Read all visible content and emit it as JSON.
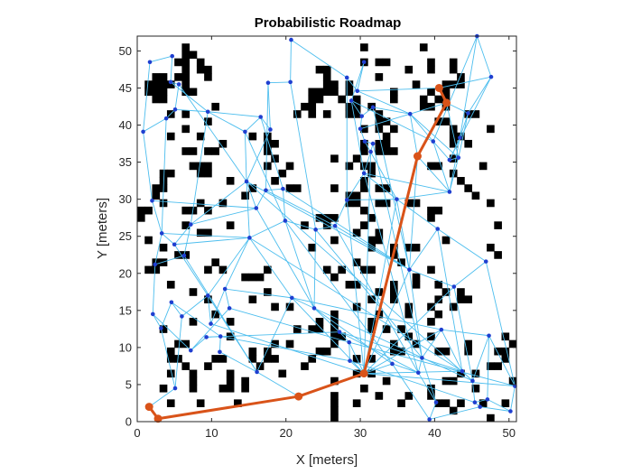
{
  "chart_data": {
    "type": "scatter",
    "title": "Probabilistic Roadmap",
    "xlabel": "X [meters]",
    "ylabel": "Y [meters]",
    "xlim": [
      0,
      51
    ],
    "ylim": [
      0,
      52
    ],
    "xticks": [
      0,
      10,
      20,
      30,
      40,
      50
    ],
    "yticks": [
      0,
      5,
      10,
      15,
      20,
      25,
      30,
      35,
      40,
      45,
      50
    ],
    "grid": false,
    "colors": {
      "obstacle": "#000000",
      "edge": "#4dbeee",
      "node": "#1f3fd0",
      "path": "#d95319",
      "axes": "#262626"
    },
    "map_origin_cell": [
      0,
      0
    ],
    "map_cell_size": 1,
    "occupancy_rows": [
      "...................................................",
      "......#.......................#.......#............",
      "......##...........................................",
      ".....##.#.....................#.##.....#..#........",
      "......#.##..............##..........#..#..#........",
      "..##.##..#...............#......#..........#.......",
      ".####.#..................##.#........#...###.......",
      ".###..##...............####.#.....#....#.#.........",
      "..##...................##..#.#....#...#.##.........",
      "..........#...........##....##.#......##.#.........",
      "....#.#..............#.#.#..##..#...........##.....",
      ".........#......................##......##..........",
      "......#.......................#.#.#.......#....#...",
      "....#...#......#.#...............#........##.......",
      "...........#.....##...........#.##........#.#......",
      "......##.##......#............#.###................",
      "..................#.......#..#............#........",
      ".......###.......#..#.......#.##.......##.....#....",
      "...##...##.........#...........#..........#........",
      "...#........#.....#...........#............#.......",
      "..##...........#....##....#...#.##..........#......",
      "..#...........#.............##...............#.....",
      "...#....#..#................##..##..##.........#...",
      "##....##.#....................#........##..........",
      "#.......................###....#.......#...........",
      "......#.....#.........#..#....#.................#..",
      "........##...................#..#..................",
      ".#........................#....##........#.........",
      "...#...................#.......#..#.##.........#...",
      ".....##...........................#.............#..",
      "..##......#..................#.....#...............",
      ".##......#.#.....#.......#.#..##.......#...........",
      "..............###.........#..........#.............",
      "....#.......................##....#..#..#..........",
      ".......#.........#..............#.#......#.#.......",
      ".........#.....#...............#..#.....#..##......",
      "..................#.#........#......#..#..#........",
      "..........#...............#.....#...#...#..........",
      ".......#....#...........#.#....#.......#...........",
      "...#.................#.##.#....#.#.#...............",
      "............#.............##........#..#.........#",
      ".....##...........#.#.....#.......#..#......#.....#",
      "....#..........#.#......##........##....##..#...##.",
      "....##....##...#.##....#.....#.#.................#.",
      "......#..#......#.....#........................##..",
      "....#..#....#......#.........#.#...........#.#.....",
      ".......#....#.#...........#......#.......##.......#",
      "...#...#...##.#...............#........#.....#.....",
      "..........................#.....#...#..#...........",
      "....#...#....#............#..#.....#....##.#..#..#.",
      "..........................#...............#........",
      "..........................#....................#..."
    ],
    "nodes": [
      [
        1.6,
        2.0
      ],
      [
        2.8,
        0.4
      ],
      [
        30.5,
        6.5
      ],
      [
        21.7,
        3.4
      ],
      [
        37.7,
        35.8
      ],
      [
        40.6,
        45.0
      ],
      [
        41.6,
        43.0
      ],
      [
        1.7,
        48.5
      ],
      [
        4.7,
        49.3
      ],
      [
        4.5,
        45.8
      ],
      [
        5.6,
        45.5
      ],
      [
        5.1,
        42.1
      ],
      [
        3.9,
        40.9
      ],
      [
        0.8,
        39.1
      ],
      [
        9.5,
        41.8
      ],
      [
        14.5,
        39.1
      ],
      [
        16.6,
        41.1
      ],
      [
        17.9,
        39.4
      ],
      [
        17.6,
        45.7
      ],
      [
        20.6,
        45.8
      ],
      [
        20.7,
        51.5
      ],
      [
        28.2,
        46.4
      ],
      [
        29.6,
        44.6
      ],
      [
        30.5,
        48.5
      ],
      [
        28.8,
        43.3
      ],
      [
        30.2,
        41.2
      ],
      [
        30.0,
        39.5
      ],
      [
        30.6,
        37.8
      ],
      [
        31.7,
        37.5
      ],
      [
        31.4,
        36.4
      ],
      [
        30.5,
        33.5
      ],
      [
        31.7,
        42.4
      ],
      [
        36.7,
        41.5
      ],
      [
        39.8,
        37.8
      ],
      [
        42.0,
        35.3
      ],
      [
        43.4,
        38.3
      ],
      [
        44.5,
        41.6
      ],
      [
        45.7,
        52.0
      ],
      [
        47.6,
        46.5
      ],
      [
        43.2,
        35.6
      ],
      [
        42.0,
        31.0
      ],
      [
        2.0,
        29.8
      ],
      [
        3.3,
        25.4
      ],
      [
        5.0,
        23.9
      ],
      [
        7.2,
        26.6
      ],
      [
        6.3,
        22.4
      ],
      [
        2.4,
        21.2
      ],
      [
        14.7,
        32.4
      ],
      [
        16.0,
        28.8
      ],
      [
        17.3,
        31.2
      ],
      [
        19.6,
        31.4
      ],
      [
        19.9,
        27.1
      ],
      [
        15.1,
        24.8
      ],
      [
        24.0,
        25.9
      ],
      [
        26.6,
        26.4
      ],
      [
        28.2,
        29.9
      ],
      [
        34.9,
        30.0
      ],
      [
        36.6,
        20.5
      ],
      [
        40.4,
        26.0
      ],
      [
        46.9,
        21.6
      ],
      [
        42.6,
        18.2
      ],
      [
        2.1,
        14.5
      ],
      [
        3.2,
        12.6
      ],
      [
        4.6,
        16.1
      ],
      [
        6.0,
        14.2
      ],
      [
        9.5,
        17.0
      ],
      [
        9.9,
        13.2
      ],
      [
        11.8,
        17.9
      ],
      [
        12.4,
        15.3
      ],
      [
        7.2,
        9.6
      ],
      [
        9.3,
        11.4
      ],
      [
        11.2,
        11.5
      ],
      [
        11.1,
        9.4
      ],
      [
        16.1,
        6.7
      ],
      [
        20.8,
        16.7
      ],
      [
        23.8,
        15.3
      ],
      [
        27.2,
        12.1
      ],
      [
        28.5,
        10.7
      ],
      [
        28.6,
        8.2
      ],
      [
        34.3,
        7.8
      ],
      [
        37.8,
        6.6
      ],
      [
        38.3,
        8.6
      ],
      [
        40.9,
        12.4
      ],
      [
        43.7,
        6.8
      ],
      [
        45.1,
        5.5
      ],
      [
        45.4,
        2.6
      ],
      [
        47.1,
        3.0
      ],
      [
        50.2,
        1.4
      ],
      [
        50.8,
        4.8
      ],
      [
        47.3,
        11.6
      ],
      [
        40.2,
        2.6
      ],
      [
        39.3,
        0.3
      ],
      [
        5.1,
        4.5
      ],
      [
        46.1,
        2.0
      ]
    ],
    "edges": [
      [
        0,
        1
      ],
      [
        1,
        3
      ],
      [
        3,
        2
      ],
      [
        2,
        4
      ],
      [
        4,
        6
      ],
      [
        6,
        5
      ],
      [
        7,
        8
      ],
      [
        8,
        9
      ],
      [
        9,
        10
      ],
      [
        10,
        11
      ],
      [
        11,
        12
      ],
      [
        12,
        13
      ],
      [
        13,
        7
      ],
      [
        9,
        14
      ],
      [
        11,
        14
      ],
      [
        14,
        16
      ],
      [
        14,
        15
      ],
      [
        15,
        16
      ],
      [
        16,
        17
      ],
      [
        17,
        18
      ],
      [
        18,
        19
      ],
      [
        19,
        20
      ],
      [
        20,
        21
      ],
      [
        21,
        22
      ],
      [
        22,
        23
      ],
      [
        23,
        24
      ],
      [
        24,
        25
      ],
      [
        25,
        26
      ],
      [
        26,
        27
      ],
      [
        27,
        28
      ],
      [
        28,
        29
      ],
      [
        29,
        30
      ],
      [
        25,
        31
      ],
      [
        31,
        32
      ],
      [
        32,
        33
      ],
      [
        33,
        34
      ],
      [
        34,
        35
      ],
      [
        35,
        36
      ],
      [
        36,
        38
      ],
      [
        38,
        37
      ],
      [
        37,
        35
      ],
      [
        32,
        39
      ],
      [
        39,
        40
      ],
      [
        33,
        40
      ],
      [
        32,
        6
      ],
      [
        5,
        38
      ],
      [
        6,
        36
      ],
      [
        6,
        39
      ],
      [
        36,
        39
      ],
      [
        13,
        41
      ],
      [
        41,
        42
      ],
      [
        42,
        43
      ],
      [
        43,
        44
      ],
      [
        44,
        45
      ],
      [
        45,
        46
      ],
      [
        46,
        42
      ],
      [
        15,
        47
      ],
      [
        47,
        48
      ],
      [
        48,
        49
      ],
      [
        49,
        50
      ],
      [
        50,
        51
      ],
      [
        51,
        52
      ],
      [
        52,
        47
      ],
      [
        51,
        53
      ],
      [
        53,
        54
      ],
      [
        54,
        55
      ],
      [
        55,
        56
      ],
      [
        56,
        57
      ],
      [
        57,
        58
      ],
      [
        58,
        59
      ],
      [
        59,
        60
      ],
      [
        60,
        57
      ],
      [
        56,
        58
      ],
      [
        46,
        61
      ],
      [
        61,
        62
      ],
      [
        62,
        63
      ],
      [
        63,
        64
      ],
      [
        64,
        65
      ],
      [
        65,
        66
      ],
      [
        66,
        67
      ],
      [
        67,
        68
      ],
      [
        68,
        69
      ],
      [
        69,
        70
      ],
      [
        70,
        71
      ],
      [
        71,
        72
      ],
      [
        72,
        73
      ],
      [
        73,
        74
      ],
      [
        74,
        75
      ],
      [
        75,
        76
      ],
      [
        76,
        77
      ],
      [
        77,
        78
      ],
      [
        78,
        2
      ],
      [
        2,
        79
      ],
      [
        79,
        80
      ],
      [
        80,
        81
      ],
      [
        81,
        82
      ],
      [
        82,
        83
      ],
      [
        83,
        84
      ],
      [
        84,
        85
      ],
      [
        85,
        86
      ],
      [
        86,
        87
      ],
      [
        87,
        88
      ],
      [
        88,
        89
      ],
      [
        89,
        84
      ],
      [
        80,
        90
      ],
      [
        90,
        91
      ],
      [
        91,
        93
      ],
      [
        93,
        87
      ],
      [
        92,
        0
      ],
      [
        92,
        64
      ],
      [
        73,
        3
      ],
      [
        55,
        30
      ],
      [
        30,
        56
      ],
      [
        54,
        57
      ],
      [
        53,
        75
      ],
      [
        51,
        75
      ],
      [
        52,
        74
      ],
      [
        44,
        48
      ],
      [
        43,
        52
      ],
      [
        52,
        67
      ],
      [
        67,
        74
      ],
      [
        65,
        52
      ],
      [
        27,
        56
      ],
      [
        26,
        32
      ],
      [
        22,
        32
      ],
      [
        5,
        22
      ],
      [
        24,
        33
      ],
      [
        30,
        40
      ],
      [
        56,
        40
      ],
      [
        4,
        57
      ],
      [
        2,
        57
      ],
      [
        2,
        60
      ],
      [
        2,
        82
      ],
      [
        2,
        83
      ],
      [
        77,
        2
      ],
      [
        76,
        80
      ],
      [
        75,
        79
      ],
      [
        57,
        81
      ],
      [
        60,
        84
      ],
      [
        59,
        88
      ],
      [
        82,
        89
      ],
      [
        58,
        83
      ],
      [
        55,
        2
      ],
      [
        54,
        80
      ],
      [
        53,
        81
      ],
      [
        50,
        57
      ],
      [
        51,
        79
      ],
      [
        47,
        57
      ],
      [
        48,
        75
      ],
      [
        49,
        54
      ],
      [
        47,
        84
      ],
      [
        52,
        83
      ],
      [
        29,
        2
      ],
      [
        28,
        81
      ],
      [
        31,
        57
      ],
      [
        24,
        30
      ],
      [
        21,
        55
      ],
      [
        19,
        53
      ],
      [
        18,
        49
      ],
      [
        17,
        47
      ],
      [
        16,
        50
      ],
      [
        15,
        51
      ],
      [
        14,
        44
      ],
      [
        12,
        42
      ],
      [
        10,
        47
      ],
      [
        45,
        73
      ],
      [
        65,
        73
      ],
      [
        71,
        78
      ],
      [
        63,
        71
      ],
      [
        61,
        69
      ],
      [
        62,
        92
      ],
      [
        66,
        2
      ],
      [
        70,
        76
      ],
      [
        68,
        77
      ],
      [
        74,
        2
      ],
      [
        74,
        82
      ],
      [
        75,
        84
      ],
      [
        76,
        83
      ],
      [
        77,
        88
      ],
      [
        78,
        85
      ],
      [
        79,
        91
      ],
      [
        81,
        90
      ],
      [
        85,
        93
      ],
      [
        86,
        89
      ],
      [
        56,
        2
      ],
      [
        30,
        80
      ],
      [
        4,
        32
      ],
      [
        4,
        40
      ],
      [
        39,
        34
      ],
      [
        35,
        40
      ],
      [
        37,
        33
      ],
      [
        38,
        34
      ],
      [
        41,
        48
      ],
      [
        42,
        52
      ],
      [
        43,
        65
      ],
      [
        44,
        47
      ],
      [
        2,
        88
      ]
    ],
    "path": [
      [
        1.6,
        2.0
      ],
      [
        2.8,
        0.4
      ],
      [
        21.7,
        3.4
      ],
      [
        30.5,
        6.5
      ],
      [
        37.7,
        35.8
      ],
      [
        41.6,
        43.0
      ],
      [
        40.6,
        45.0
      ]
    ]
  }
}
